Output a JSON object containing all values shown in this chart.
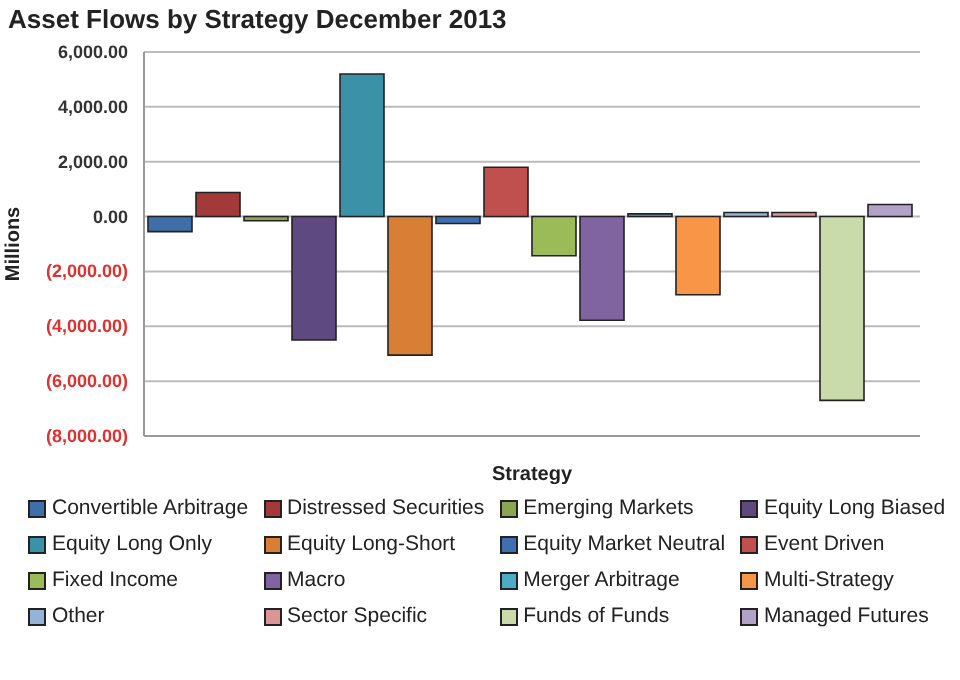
{
  "chart_data": {
    "type": "bar",
    "title": "Asset Flows by Strategy December 2013",
    "xlabel": "Strategy",
    "ylabel": "Millions",
    "categories": [
      null
    ],
    "series": [
      {
        "name": "Convertible Arbitrage",
        "color": "#3f6fa8",
        "values": [
          -550
        ]
      },
      {
        "name": "Distressed Securities",
        "color": "#a33a3a",
        "values": [
          880
        ]
      },
      {
        "name": "Emerging Markets",
        "color": "#8aa650",
        "values": [
          -150
        ]
      },
      {
        "name": "Equity Long Biased",
        "color": "#5e4a80",
        "values": [
          -4500
        ]
      },
      {
        "name": "Equity Long Only",
        "color": "#3a91a8",
        "values": [
          5200
        ]
      },
      {
        "name": "Equity Long-Short",
        "color": "#d97f35",
        "values": [
          -5050
        ]
      },
      {
        "name": "Equity Market Neutral",
        "color": "#3e6fb0",
        "values": [
          -250
        ]
      },
      {
        "name": "Event Driven",
        "color": "#c0504d",
        "values": [
          1800
        ]
      },
      {
        "name": "Fixed Income",
        "color": "#9bbb59",
        "values": [
          -1430
        ]
      },
      {
        "name": "Macro",
        "color": "#8064a2",
        "values": [
          -3780
        ]
      },
      {
        "name": "Merger Arbitrage",
        "color": "#4bacc6",
        "values": [
          100
        ]
      },
      {
        "name": "Multi-Strategy",
        "color": "#f79646",
        "values": [
          -2850
        ]
      },
      {
        "name": "Other",
        "color": "#95b3d7",
        "values": [
          150
        ]
      },
      {
        "name": "Sector Specific",
        "color": "#d99694",
        "values": [
          150
        ]
      },
      {
        "name": "Funds of Funds",
        "color": "#c9dbaa",
        "values": [
          -6700
        ]
      },
      {
        "name": "Managed Futures",
        "color": "#b3a2c7",
        "values": [
          440
        ]
      }
    ],
    "ylim": [
      -8000,
      6000
    ],
    "yticks": [
      {
        "value": -8000,
        "label": "(8,000.00)"
      },
      {
        "value": -6000,
        "label": "(6,000.00)"
      },
      {
        "value": -4000,
        "label": "(4,000.00)"
      },
      {
        "value": -2000,
        "label": "(2,000.00)"
      },
      {
        "value": 0,
        "label": "0.00"
      },
      {
        "value": 2000,
        "label": "2,000.00"
      },
      {
        "value": 4000,
        "label": "4,000.00"
      },
      {
        "value": 6000,
        "label": "6,000.00"
      }
    ],
    "grid": "y",
    "legend": "bottom"
  }
}
